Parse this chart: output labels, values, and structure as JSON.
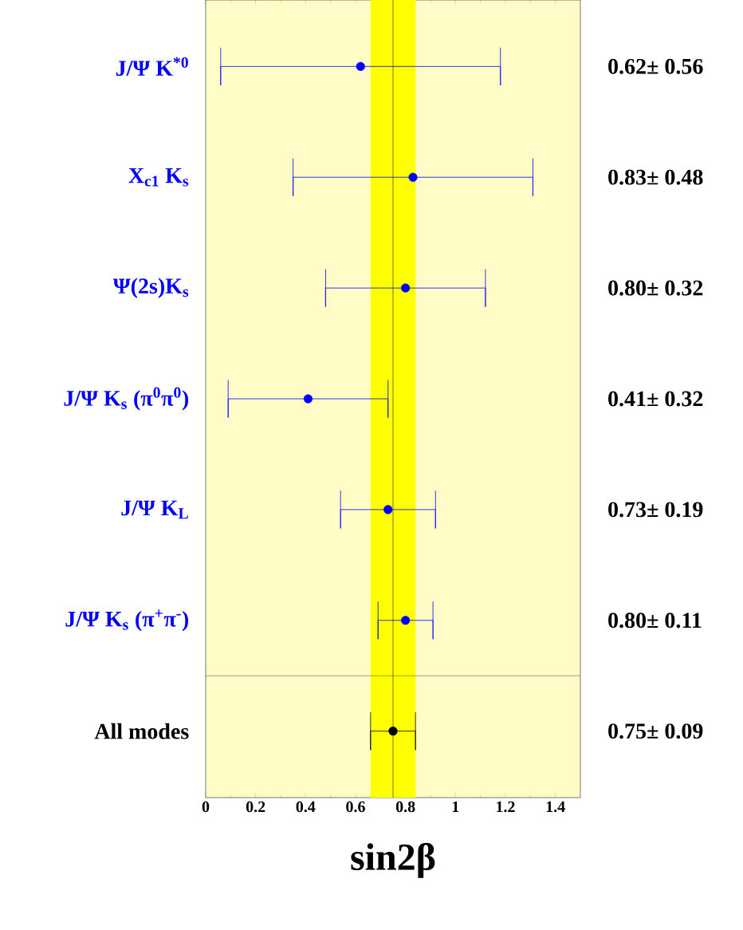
{
  "chart_data": {
    "type": "scatter",
    "orientation": "horizontal",
    "xlabel": "sin2β",
    "categories": [
      "J/Ψ K$^{*0}$",
      "X$_{c1}$ K$_{s}$",
      "Ψ(2s)K$_{s}$",
      "J/Ψ K$_{s}$ (π$^{0}$π$^{0}$)",
      "J/Ψ K$_{L}$",
      "J/Ψ K$_{s}$ (π$^{+}$π$^{-}$)",
      "All modes"
    ],
    "values": [
      0.62,
      0.83,
      0.8,
      0.41,
      0.73,
      0.8,
      0.75
    ],
    "errors": [
      0.56,
      0.48,
      0.32,
      0.32,
      0.19,
      0.11,
      0.09
    ],
    "value_labels": [
      "0.62± 0.56",
      "0.83± 0.48",
      "0.80± 0.32",
      "0.41± 0.32",
      "0.73± 0.19",
      "0.80± 0.11",
      "0.75± 0.09"
    ],
    "colors": [
      "#0000ff",
      "#0000ff",
      "#0000ff",
      "#0000ff",
      "#0000ff",
      "#0000ff",
      "#000000"
    ],
    "xlim": [
      0,
      1.5
    ],
    "xticks": [
      0,
      0.2,
      0.4,
      0.6,
      0.8,
      1,
      1.2,
      1.4
    ],
    "bands": [
      {
        "axis": "x",
        "from": 0.66,
        "to": 0.84,
        "color": "#ffff00"
      }
    ],
    "ref_lines": [
      {
        "axis": "x",
        "value": 0.75,
        "color": "#000000"
      }
    ],
    "grid": false
  }
}
